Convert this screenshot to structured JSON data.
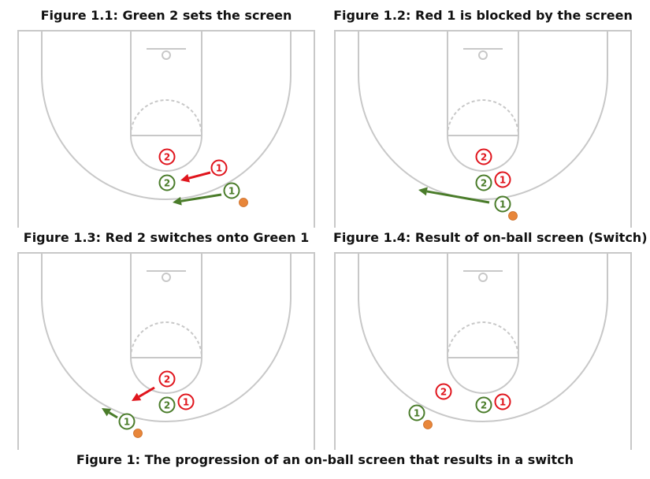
{
  "caption": "Figure 1: The progression of an on-ball screen that results in a switch",
  "colors": {
    "red": "#e0151d",
    "green": "#4a7c2a",
    "ball": "#e8863a",
    "court": "#c8c8c8"
  },
  "panels": [
    {
      "title": "Figure 1.1: Green 2 sets the screen",
      "players": [
        {
          "team": "red",
          "label": "2"
        },
        {
          "team": "red",
          "label": "1"
        },
        {
          "team": "green",
          "label": "2"
        },
        {
          "team": "green",
          "label": "1"
        }
      ]
    },
    {
      "title": "Figure 1.2: Red 1 is blocked by the screen",
      "players": [
        {
          "team": "red",
          "label": "2"
        },
        {
          "team": "green",
          "label": "2"
        },
        {
          "team": "red",
          "label": "1"
        },
        {
          "team": "green",
          "label": "1"
        }
      ]
    },
    {
      "title": "Figure 1.3: Red 2 switches onto Green 1",
      "players": [
        {
          "team": "red",
          "label": "2"
        },
        {
          "team": "green",
          "label": "2"
        },
        {
          "team": "red",
          "label": "1"
        },
        {
          "team": "green",
          "label": "1"
        }
      ]
    },
    {
      "title": "Figure 1.4: Result of on-ball screen (Switch)",
      "players": [
        {
          "team": "red",
          "label": "2"
        },
        {
          "team": "green",
          "label": "1"
        },
        {
          "team": "green",
          "label": "2"
        },
        {
          "team": "red",
          "label": "1"
        }
      ]
    }
  ]
}
